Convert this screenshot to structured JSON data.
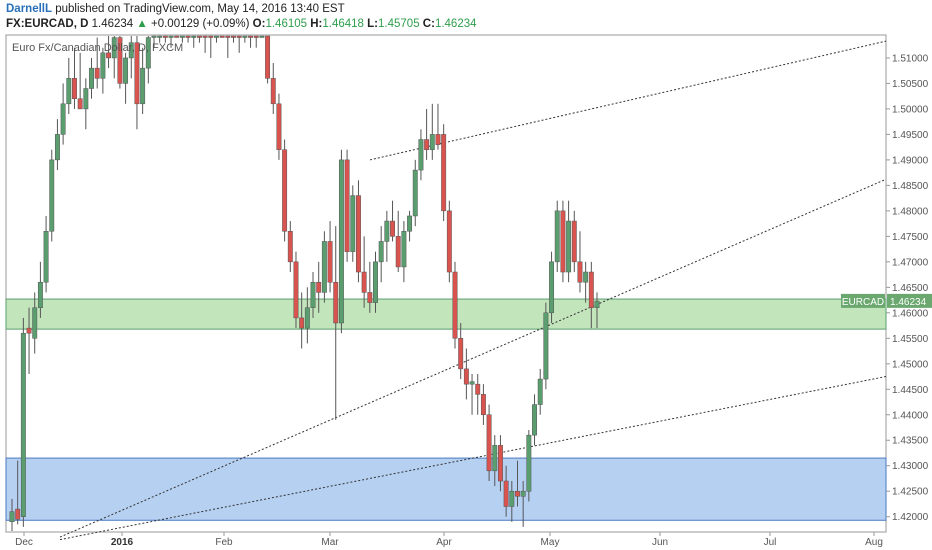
{
  "header": {
    "author": "DarnellL",
    "published": "published on TradingView.com, May 14, 2016 13:40 EST"
  },
  "quote": {
    "symbol": "FX:EURCAD, D",
    "price": "1.46234",
    "change": "+0.00129 (+0.09%)",
    "o_label": "O:",
    "o": "1.46105",
    "h_label": "H:",
    "h": "1.46418",
    "l_label": "L:",
    "l": "1.45705",
    "c_label": "C:",
    "c": "1.46234"
  },
  "chart_title": "Euro Fx/Canadian Dollar, D, FXCM",
  "price_tag": {
    "symbol": "EURCAD",
    "price": "1.46234"
  },
  "colors": {
    "up": "#5a9e6f",
    "down": "#d9534f",
    "greenzone": "#b9e0b0",
    "bluezone": "#a9c8f0"
  },
  "chart_data": {
    "type": "candlestick",
    "symbol": "EURCAD",
    "ylim": [
      1.417,
      1.5145
    ],
    "y_ticks": [
      "1.51000",
      "1.50500",
      "1.50000",
      "1.49500",
      "1.49000",
      "1.48500",
      "1.48000",
      "1.47500",
      "1.47000",
      "1.46500",
      "1.46000",
      "1.45500",
      "1.45000",
      "1.44500",
      "1.44000",
      "1.43500",
      "1.43000",
      "1.42500",
      "1.42000"
    ],
    "x_labels": [
      "Dec",
      "2016",
      "Feb",
      "Mar",
      "Apr",
      "May",
      "Jun",
      "Jul",
      "Aug"
    ],
    "last_price": 1.46234,
    "zones": [
      {
        "name": "green",
        "from": 1.4568,
        "to": 1.4627
      },
      {
        "name": "blue",
        "from": 1.4193,
        "to": 1.4315
      }
    ],
    "trendlines": [
      {
        "from": [
          1.49,
          "Mar"
        ],
        "to": [
          1.5133,
          "Aug"
        ]
      },
      {
        "from": [
          1.416,
          "Dec"
        ],
        "to": [
          1.4862,
          "Aug"
        ]
      },
      {
        "from": [
          1.4155,
          "Dec"
        ],
        "to": [
          1.4475,
          "Aug"
        ]
      }
    ],
    "candles": [
      {
        "o": 1.419,
        "h": 1.4235,
        "l": 1.4165,
        "c": 1.421
      },
      {
        "o": 1.4215,
        "h": 1.431,
        "l": 1.4185,
        "c": 1.4195
      },
      {
        "o": 1.42,
        "h": 1.459,
        "l": 1.418,
        "c": 1.456
      },
      {
        "o": 1.457,
        "h": 1.461,
        "l": 1.448,
        "c": 1.456
      },
      {
        "o": 1.455,
        "h": 1.464,
        "l": 1.452,
        "c": 1.461
      },
      {
        "o": 1.461,
        "h": 1.47,
        "l": 1.459,
        "c": 1.466
      },
      {
        "o": 1.466,
        "h": 1.479,
        "l": 1.464,
        "c": 1.476
      },
      {
        "o": 1.476,
        "h": 1.492,
        "l": 1.474,
        "c": 1.49
      },
      {
        "o": 1.49,
        "h": 1.498,
        "l": 1.488,
        "c": 1.495
      },
      {
        "o": 1.495,
        "h": 1.505,
        "l": 1.493,
        "c": 1.501
      },
      {
        "o": 1.501,
        "h": 1.51,
        "l": 1.499,
        "c": 1.506
      },
      {
        "o": 1.506,
        "h": 1.512,
        "l": 1.5,
        "c": 1.502
      },
      {
        "o": 1.502,
        "h": 1.511,
        "l": 1.5,
        "c": 1.5
      },
      {
        "o": 1.5,
        "h": 1.506,
        "l": 1.496,
        "c": 1.504
      },
      {
        "o": 1.504,
        "h": 1.51,
        "l": 1.502,
        "c": 1.508
      },
      {
        "o": 1.508,
        "h": 1.514,
        "l": 1.504,
        "c": 1.506
      },
      {
        "o": 1.506,
        "h": 1.512,
        "l": 1.503,
        "c": 1.511
      },
      {
        "o": 1.511,
        "h": 1.516,
        "l": 1.508,
        "c": 1.51
      },
      {
        "o": 1.51,
        "h": 1.515,
        "l": 1.506,
        "c": 1.514
      },
      {
        "o": 1.514,
        "h": 1.517,
        "l": 1.504,
        "c": 1.505
      },
      {
        "o": 1.505,
        "h": 1.511,
        "l": 1.501,
        "c": 1.51
      },
      {
        "o": 1.51,
        "h": 1.515,
        "l": 1.506,
        "c": 1.513
      },
      {
        "o": 1.513,
        "h": 1.516,
        "l": 1.496,
        "c": 1.501
      },
      {
        "o": 1.501,
        "h": 1.512,
        "l": 1.499,
        "c": 1.508
      },
      {
        "o": 1.508,
        "h": 1.515,
        "l": 1.505,
        "c": 1.514
      },
      {
        "o": 1.5145,
        "h": 1.517,
        "l": 1.512,
        "c": 1.516
      },
      {
        "o": 1.515,
        "h": 1.517,
        "l": 1.513,
        "c": 1.5165
      },
      {
        "o": 1.516,
        "h": 1.5175,
        "l": 1.513,
        "c": 1.515
      },
      {
        "o": 1.515,
        "h": 1.517,
        "l": 1.512,
        "c": 1.5165
      },
      {
        "o": 1.5165,
        "h": 1.518,
        "l": 1.514,
        "c": 1.515
      },
      {
        "o": 1.515,
        "h": 1.5175,
        "l": 1.513,
        "c": 1.516
      },
      {
        "o": 1.516,
        "h": 1.518,
        "l": 1.513,
        "c": 1.514
      },
      {
        "o": 1.514,
        "h": 1.517,
        "l": 1.512,
        "c": 1.516
      },
      {
        "o": 1.516,
        "h": 1.5175,
        "l": 1.513,
        "c": 1.515
      },
      {
        "o": 1.515,
        "h": 1.517,
        "l": 1.511,
        "c": 1.5145
      },
      {
        "o": 1.515,
        "h": 1.5165,
        "l": 1.51,
        "c": 1.514
      },
      {
        "o": 1.515,
        "h": 1.517,
        "l": 1.513,
        "c": 1.516
      },
      {
        "o": 1.516,
        "h": 1.5175,
        "l": 1.514,
        "c": 1.515
      },
      {
        "o": 1.515,
        "h": 1.517,
        "l": 1.51,
        "c": 1.514
      },
      {
        "o": 1.516,
        "h": 1.5175,
        "l": 1.513,
        "c": 1.515
      },
      {
        "o": 1.515,
        "h": 1.517,
        "l": 1.511,
        "c": 1.514
      },
      {
        "o": 1.515,
        "h": 1.517,
        "l": 1.513,
        "c": 1.516
      },
      {
        "o": 1.516,
        "h": 1.5175,
        "l": 1.512,
        "c": 1.5145
      },
      {
        "o": 1.515,
        "h": 1.517,
        "l": 1.512,
        "c": 1.514
      },
      {
        "o": 1.516,
        "h": 1.5175,
        "l": 1.514,
        "c": 1.5165
      },
      {
        "o": 1.516,
        "h": 1.517,
        "l": 1.505,
        "c": 1.506
      },
      {
        "o": 1.506,
        "h": 1.509,
        "l": 1.499,
        "c": 1.501
      },
      {
        "o": 1.501,
        "h": 1.503,
        "l": 1.49,
        "c": 1.492
      },
      {
        "o": 1.492,
        "h": 1.494,
        "l": 1.474,
        "c": 1.476
      },
      {
        "o": 1.476,
        "h": 1.478,
        "l": 1.468,
        "c": 1.47
      },
      {
        "o": 1.47,
        "h": 1.472,
        "l": 1.457,
        "c": 1.459
      },
      {
        "o": 1.459,
        "h": 1.464,
        "l": 1.453,
        "c": 1.457
      },
      {
        "o": 1.457,
        "h": 1.465,
        "l": 1.454,
        "c": 1.461
      },
      {
        "o": 1.461,
        "h": 1.468,
        "l": 1.459,
        "c": 1.466
      },
      {
        "o": 1.466,
        "h": 1.47,
        "l": 1.46,
        "c": 1.464
      },
      {
        "o": 1.464,
        "h": 1.476,
        "l": 1.462,
        "c": 1.474
      },
      {
        "o": 1.474,
        "h": 1.478,
        "l": 1.464,
        "c": 1.466
      },
      {
        "o": 1.466,
        "h": 1.477,
        "l": 1.439,
        "c": 1.458
      },
      {
        "o": 1.458,
        "h": 1.492,
        "l": 1.456,
        "c": 1.49
      },
      {
        "o": 1.49,
        "h": 1.492,
        "l": 1.47,
        "c": 1.472
      },
      {
        "o": 1.472,
        "h": 1.485,
        "l": 1.47,
        "c": 1.483
      },
      {
        "o": 1.483,
        "h": 1.486,
        "l": 1.466,
        "c": 1.468
      },
      {
        "o": 1.468,
        "h": 1.475,
        "l": 1.461,
        "c": 1.464
      },
      {
        "o": 1.464,
        "h": 1.47,
        "l": 1.46,
        "c": 1.462
      },
      {
        "o": 1.462,
        "h": 1.472,
        "l": 1.46,
        "c": 1.47
      },
      {
        "o": 1.47,
        "h": 1.477,
        "l": 1.466,
        "c": 1.474
      },
      {
        "o": 1.474,
        "h": 1.48,
        "l": 1.47,
        "c": 1.478
      },
      {
        "o": 1.478,
        "h": 1.482,
        "l": 1.474,
        "c": 1.475
      },
      {
        "o": 1.475,
        "h": 1.48,
        "l": 1.468,
        "c": 1.469
      },
      {
        "o": 1.469,
        "h": 1.478,
        "l": 1.466,
        "c": 1.476
      },
      {
        "o": 1.476,
        "h": 1.48,
        "l": 1.474,
        "c": 1.479
      },
      {
        "o": 1.479,
        "h": 1.49,
        "l": 1.477,
        "c": 1.488
      },
      {
        "o": 1.488,
        "h": 1.496,
        "l": 1.486,
        "c": 1.494
      },
      {
        "o": 1.494,
        "h": 1.5,
        "l": 1.49,
        "c": 1.492
      },
      {
        "o": 1.492,
        "h": 1.501,
        "l": 1.49,
        "c": 1.495
      },
      {
        "o": 1.495,
        "h": 1.501,
        "l": 1.492,
        "c": 1.493
      },
      {
        "o": 1.495,
        "h": 1.497,
        "l": 1.478,
        "c": 1.48
      },
      {
        "o": 1.48,
        "h": 1.482,
        "l": 1.466,
        "c": 1.468
      },
      {
        "o": 1.468,
        "h": 1.47,
        "l": 1.453,
        "c": 1.455
      },
      {
        "o": 1.455,
        "h": 1.458,
        "l": 1.447,
        "c": 1.449
      },
      {
        "o": 1.449,
        "h": 1.453,
        "l": 1.443,
        "c": 1.446
      },
      {
        "o": 1.446,
        "h": 1.448,
        "l": 1.44,
        "c": 1.4465
      },
      {
        "o": 1.446,
        "h": 1.448,
        "l": 1.44,
        "c": 1.444
      },
      {
        "o": 1.444,
        "h": 1.446,
        "l": 1.438,
        "c": 1.44
      },
      {
        "o": 1.44,
        "h": 1.442,
        "l": 1.427,
        "c": 1.429
      },
      {
        "o": 1.429,
        "h": 1.436,
        "l": 1.426,
        "c": 1.434
      },
      {
        "o": 1.434,
        "h": 1.436,
        "l": 1.425,
        "c": 1.427
      },
      {
        "o": 1.427,
        "h": 1.43,
        "l": 1.42,
        "c": 1.422
      },
      {
        "o": 1.422,
        "h": 1.427,
        "l": 1.419,
        "c": 1.425
      },
      {
        "o": 1.425,
        "h": 1.431,
        "l": 1.422,
        "c": 1.424
      },
      {
        "o": 1.424,
        "h": 1.427,
        "l": 1.418,
        "c": 1.425
      },
      {
        "o": 1.425,
        "h": 1.437,
        "l": 1.423,
        "c": 1.436
      },
      {
        "o": 1.436,
        "h": 1.444,
        "l": 1.434,
        "c": 1.442
      },
      {
        "o": 1.442,
        "h": 1.449,
        "l": 1.44,
        "c": 1.447
      },
      {
        "o": 1.447,
        "h": 1.462,
        "l": 1.445,
        "c": 1.46
      },
      {
        "o": 1.46,
        "h": 1.472,
        "l": 1.458,
        "c": 1.47
      },
      {
        "o": 1.47,
        "h": 1.482,
        "l": 1.468,
        "c": 1.48
      },
      {
        "o": 1.48,
        "h": 1.482,
        "l": 1.466,
        "c": 1.468
      },
      {
        "o": 1.468,
        "h": 1.482,
        "l": 1.466,
        "c": 1.478
      },
      {
        "o": 1.478,
        "h": 1.48,
        "l": 1.468,
        "c": 1.47
      },
      {
        "o": 1.47,
        "h": 1.476,
        "l": 1.464,
        "c": 1.466
      },
      {
        "o": 1.466,
        "h": 1.47,
        "l": 1.462,
        "c": 1.468
      },
      {
        "o": 1.468,
        "h": 1.47,
        "l": 1.457,
        "c": 1.461
      },
      {
        "o": 1.461,
        "h": 1.464,
        "l": 1.457,
        "c": 1.4623
      }
    ]
  }
}
